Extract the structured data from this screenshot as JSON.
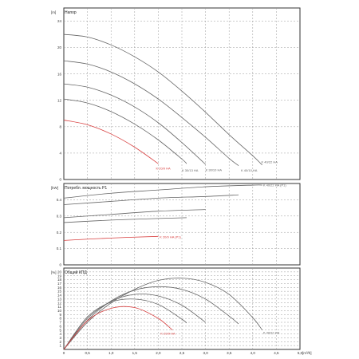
{
  "colors": {
    "grey": "#666666",
    "red": "#d84040",
    "frame": "#333333",
    "grid": "#9a9a9a"
  },
  "chart_data": [
    {
      "type": "line",
      "title": "Напор",
      "unit_label": "[m]",
      "xlim": [
        0,
        5
      ],
      "ylim": [
        0,
        26
      ],
      "xticks": [
        0,
        0.5,
        1,
        1.5,
        2,
        2.5,
        3,
        3.5,
        4,
        4.5,
        5
      ],
      "yticks": [
        "0",
        "4",
        "8",
        "12",
        "16",
        "20",
        "24"
      ],
      "ytick_values": [
        0,
        4,
        8,
        12,
        16,
        20,
        24
      ],
      "grid": true,
      "series": [
        {
          "name": "K 40/22 HA",
          "color": "grey",
          "x": [
            0,
            0.5,
            1,
            1.5,
            2,
            2.5,
            3,
            3.5,
            4,
            4.2
          ],
          "y": [
            22,
            21.6,
            20.4,
            18.6,
            16.3,
            13.4,
            10.2,
            6.8,
            3.6,
            2.2
          ]
        },
        {
          "name": "K 40/10 HA",
          "color": "grey",
          "x": [
            0,
            0.5,
            1,
            1.5,
            2,
            2.5,
            3,
            3.5,
            3.7
          ],
          "y": [
            18,
            17.5,
            16.3,
            14.5,
            12.2,
            9.4,
            6.4,
            3.2,
            2.1
          ]
        },
        {
          "name": "K 30/10 HA",
          "color": "grey",
          "x": [
            0,
            0.5,
            1,
            1.5,
            2,
            2.5,
            3
          ],
          "y": [
            14.5,
            14,
            12.8,
            11,
            8.6,
            5.6,
            2.3
          ]
        },
        {
          "name": "K 30/13 HA",
          "color": "grey",
          "x": [
            0,
            0.5,
            1,
            1.5,
            2,
            2.5,
            2.6
          ],
          "y": [
            12.2,
            11.6,
            10.3,
            8.4,
            6,
            3.1,
            2.4
          ]
        },
        {
          "name": "K 20/9 HA",
          "color": "red",
          "x": [
            0,
            0.5,
            1,
            1.5,
            2
          ],
          "y": [
            9,
            8.3,
            6.9,
            4.9,
            2.4
          ]
        }
      ]
    },
    {
      "type": "line",
      "title": "Потребл. мощность P1",
      "unit_label": "[kW]",
      "xlim": [
        0,
        5
      ],
      "ylim": [
        0,
        0.5
      ],
      "xticks": [
        0,
        0.5,
        1,
        1.5,
        2,
        2.5,
        3,
        3.5,
        4,
        4.5,
        5
      ],
      "yticks": [
        "0",
        "0.1",
        "0.2",
        "0.3",
        "0.4"
      ],
      "ytick_values": [
        0,
        0.1,
        0.2,
        0.3,
        0.4
      ],
      "grid": true,
      "series": [
        {
          "name": "K 40/22 HA (P1)",
          "color": "grey",
          "x": [
            0,
            1,
            2,
            3,
            4,
            4.2
          ],
          "y": [
            0.41,
            0.44,
            0.46,
            0.48,
            0.49,
            0.49
          ]
        },
        {
          "name": "K 40/10 HA (P1)",
          "color": "grey",
          "x": [
            0,
            1,
            2,
            3,
            3.7
          ],
          "y": [
            0.37,
            0.39,
            0.41,
            0.42,
            0.43
          ]
        },
        {
          "name": "K 30/10 HA (P1)",
          "color": "grey",
          "x": [
            0,
            1,
            2,
            3
          ],
          "y": [
            0.29,
            0.31,
            0.33,
            0.34
          ]
        },
        {
          "name": "K 30/13 HA (P1)",
          "color": "grey",
          "x": [
            0,
            1,
            2,
            2.6
          ],
          "y": [
            0.26,
            0.275,
            0.285,
            0.29
          ]
        },
        {
          "name": "K 20/9 HA (P1)",
          "color": "red",
          "x": [
            0,
            1,
            2
          ],
          "y": [
            0.15,
            0.165,
            0.175
          ]
        }
      ]
    },
    {
      "type": "line",
      "title": "Общий КПД",
      "unit_label": "[%]",
      "xlabel": "[m³/h]",
      "xlim": [
        0,
        5
      ],
      "ylim": [
        0,
        21
      ],
      "xticks": [
        0,
        0.5,
        1,
        1.5,
        2,
        2.5,
        3,
        3.5,
        4,
        4.5,
        5
      ],
      "xticklabels": [
        "0",
        "0,5",
        "1,0",
        "1,5",
        "2,0",
        "2,5",
        "3,0",
        "3,5",
        "4,0",
        "4,5",
        "5,0"
      ],
      "yticks": [
        "1",
        "2",
        "3",
        "4",
        "5",
        "6",
        "7",
        "8",
        "9",
        "10",
        "11",
        "12",
        "13",
        "14",
        "15",
        "16",
        "17",
        "18",
        "19",
        "20"
      ],
      "ytick_values": [
        1,
        2,
        3,
        4,
        5,
        6,
        7,
        8,
        9,
        10,
        11,
        12,
        13,
        14,
        15,
        16,
        17,
        18,
        19,
        20
      ],
      "grid": true,
      "series": [
        {
          "name": "K 40/22 HA",
          "color": "grey",
          "x": [
            0,
            0.5,
            1,
            1.5,
            2,
            2.5,
            3,
            3.5,
            4,
            4.2
          ],
          "y": [
            0,
            7,
            12,
            15.5,
            17.8,
            18.4,
            17.3,
            14.2,
            8.2,
            5
          ]
        },
        {
          "name": "K 40/10 HA",
          "color": "grey",
          "x": [
            0,
            0.5,
            1,
            1.5,
            2,
            2.5,
            3,
            3.5,
            3.7
          ],
          "y": [
            0,
            7.5,
            12.5,
            15.3,
            16.2,
            15.5,
            13,
            8.6,
            6.6
          ]
        },
        {
          "name": "K 30/10 HA",
          "color": "grey",
          "x": [
            0,
            0.5,
            1,
            1.5,
            2,
            2.5,
            3
          ],
          "y": [
            0,
            8,
            12.4,
            14.2,
            13.8,
            11.4,
            7
          ]
        },
        {
          "name": "K 30/13 HA",
          "color": "grey",
          "x": [
            0,
            0.5,
            1,
            1.5,
            2,
            2.5,
            2.6
          ],
          "y": [
            0,
            8.4,
            12.2,
            13,
            11.6,
            7.8,
            6.8
          ]
        },
        {
          "name": "K 20/9 HA",
          "color": "red",
          "x": [
            0,
            0.5,
            1,
            1.5,
            2,
            2.3
          ],
          "y": [
            0,
            7.4,
            10.6,
            10.8,
            8,
            5
          ]
        }
      ]
    }
  ]
}
